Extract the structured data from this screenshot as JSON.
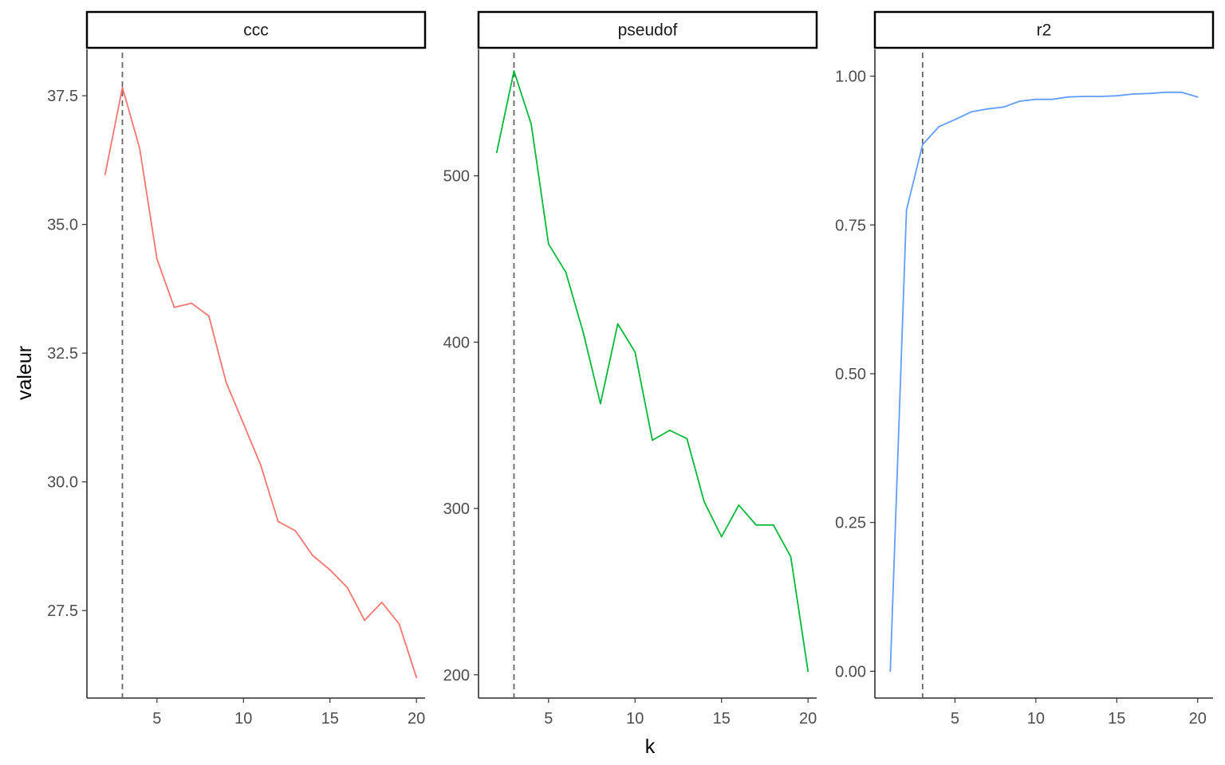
{
  "chart_data": {
    "type": "line",
    "layout": "facets-horizontal",
    "xlabel": "k",
    "ylabel": "valeur",
    "grid": false,
    "legend": "none",
    "reference_line": {
      "x": 3,
      "style": "dashed",
      "color": "#666666"
    },
    "facets": [
      {
        "name": "ccc",
        "color": "#F8766D",
        "x": [
          2,
          3,
          4,
          5,
          6,
          7,
          8,
          9,
          10,
          11,
          12,
          13,
          14,
          15,
          16,
          17,
          18,
          19,
          20
        ],
        "y": [
          35.97,
          37.66,
          36.48,
          34.33,
          33.39,
          33.47,
          33.22,
          31.93,
          31.13,
          30.32,
          29.23,
          29.05,
          28.57,
          28.29,
          27.95,
          27.31,
          27.66,
          27.24,
          26.2
        ],
        "ylim": [
          25.8,
          38.4
        ],
        "yticks": [
          27.5,
          30.0,
          32.5,
          35.0,
          37.5
        ],
        "ytick_labels": [
          "27.5",
          "30.0",
          "32.5",
          "35.0",
          "37.5"
        ],
        "xlim": [
          0.95,
          20.5
        ],
        "xticks": [
          5,
          10,
          15,
          20
        ],
        "xtick_labels": [
          "5",
          "10",
          "15",
          "20"
        ]
      },
      {
        "name": "pseudof",
        "color": "#00BA38",
        "x": [
          2,
          3,
          4,
          5,
          6,
          7,
          8,
          9,
          10,
          11,
          12,
          13,
          14,
          15,
          16,
          17,
          18,
          19,
          20
        ],
        "y": [
          514,
          563,
          531,
          459,
          442,
          406,
          363,
          411,
          394,
          341,
          347,
          342,
          304,
          283,
          302,
          290,
          290,
          271,
          202
        ],
        "ylim": [
          186,
          576
        ],
        "yticks": [
          200,
          300,
          400,
          500
        ],
        "ytick_labels": [
          "200",
          "300",
          "400",
          "500"
        ],
        "xlim": [
          0.95,
          20.5
        ],
        "xticks": [
          5,
          10,
          15,
          20
        ],
        "xtick_labels": [
          "5",
          "10",
          "15",
          "20"
        ]
      },
      {
        "name": "r2",
        "color": "#619CFF",
        "x": [
          1,
          2,
          3,
          4,
          5,
          6,
          7,
          8,
          9,
          10,
          11,
          12,
          13,
          14,
          15,
          16,
          17,
          18,
          19,
          20
        ],
        "y": [
          0.0,
          0.775,
          0.885,
          0.915,
          0.927,
          0.94,
          0.945,
          0.948,
          0.958,
          0.961,
          0.961,
          0.965,
          0.966,
          0.966,
          0.967,
          0.97,
          0.971,
          0.973,
          0.973,
          0.965
        ],
        "ylim": [
          -0.045,
          1.045
        ],
        "yticks": [
          0.0,
          0.25,
          0.5,
          0.75,
          1.0
        ],
        "ytick_labels": [
          "0.00",
          "0.25",
          "0.50",
          "0.75",
          "1.00"
        ],
        "xlim": [
          0.05,
          20.95
        ],
        "xticks": [
          5,
          10,
          15,
          20
        ],
        "xtick_labels": [
          "5",
          "10",
          "15",
          "20"
        ]
      }
    ]
  }
}
